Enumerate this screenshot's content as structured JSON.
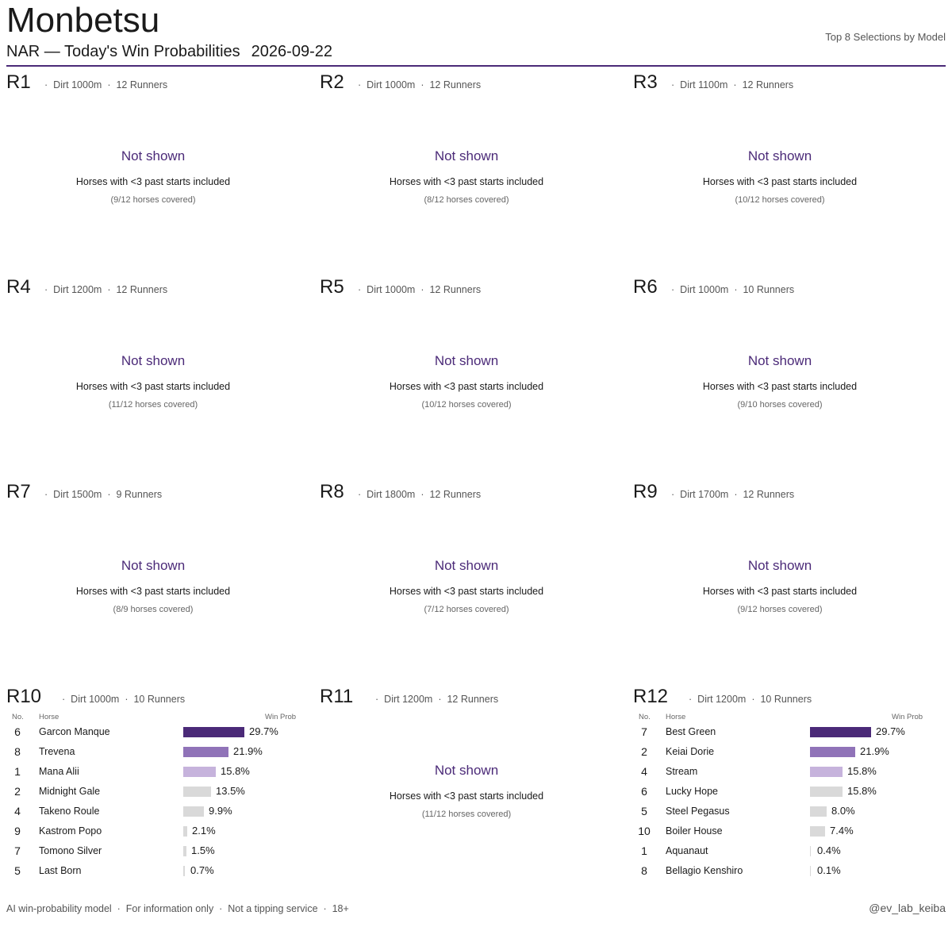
{
  "header": {
    "venue": "Monbetsu",
    "subtitle": "NAR — Today's Win Probabilities",
    "date": "2026-09-22",
    "right_label": "Top 8 Selections by Model"
  },
  "labels": {
    "not_shown": "Not shown",
    "not_shown_note": "Horses with <3 past starts included",
    "col_no": "No.",
    "col_horse": "Horse",
    "col_prob": "Win Prob",
    "separator": "·"
  },
  "colors": {
    "accent": "#4b2a78",
    "mid": "#9073b8",
    "light": "#c6b3dc",
    "grey": "#d9d9d9"
  },
  "races": [
    {
      "id": "R1",
      "surface": "Dirt 1000m",
      "runners": "12 Runners",
      "coverage": "(9/12 horses covered)"
    },
    {
      "id": "R2",
      "surface": "Dirt 1000m",
      "runners": "12 Runners",
      "coverage": "(8/12 horses covered)"
    },
    {
      "id": "R3",
      "surface": "Dirt 1100m",
      "runners": "12 Runners",
      "coverage": "(10/12 horses covered)"
    },
    {
      "id": "R4",
      "surface": "Dirt 1200m",
      "runners": "12 Runners",
      "coverage": "(11/12 horses covered)"
    },
    {
      "id": "R5",
      "surface": "Dirt 1000m",
      "runners": "12 Runners",
      "coverage": "(10/12 horses covered)"
    },
    {
      "id": "R6",
      "surface": "Dirt 1000m",
      "runners": "10 Runners",
      "coverage": "(9/10 horses covered)"
    },
    {
      "id": "R7",
      "surface": "Dirt 1500m",
      "runners": "9 Runners",
      "coverage": "(8/9 horses covered)"
    },
    {
      "id": "R8",
      "surface": "Dirt 1800m",
      "runners": "12 Runners",
      "coverage": "(7/12 horses covered)"
    },
    {
      "id": "R9",
      "surface": "Dirt 1700m",
      "runners": "12 Runners",
      "coverage": "(9/12 horses covered)"
    },
    {
      "id": "R10",
      "surface": "Dirt 1000m",
      "runners": "10 Runners",
      "selections": [
        {
          "no": "6",
          "horse": "Garcon Manque",
          "prob": 29.7,
          "label": "29.7%",
          "tier": "accent"
        },
        {
          "no": "8",
          "horse": "Trevena",
          "prob": 21.9,
          "label": "21.9%",
          "tier": "mid"
        },
        {
          "no": "1",
          "horse": "Mana Alii",
          "prob": 15.8,
          "label": "15.8%",
          "tier": "light"
        },
        {
          "no": "2",
          "horse": "Midnight Gale",
          "prob": 13.5,
          "label": "13.5%",
          "tier": "grey"
        },
        {
          "no": "4",
          "horse": "Takeno Roule",
          "prob": 9.9,
          "label": "9.9%",
          "tier": "grey"
        },
        {
          "no": "9",
          "horse": "Kastrom Popo",
          "prob": 2.1,
          "label": "2.1%",
          "tier": "grey"
        },
        {
          "no": "7",
          "horse": "Tomono Silver",
          "prob": 1.5,
          "label": "1.5%",
          "tier": "grey"
        },
        {
          "no": "5",
          "horse": "Last Born",
          "prob": 0.7,
          "label": "0.7%",
          "tier": "grey"
        }
      ]
    },
    {
      "id": "R11",
      "surface": "Dirt 1200m",
      "runners": "12 Runners",
      "coverage": "(11/12 horses covered)"
    },
    {
      "id": "R12",
      "surface": "Dirt 1200m",
      "runners": "10 Runners",
      "selections": [
        {
          "no": "7",
          "horse": "Best Green",
          "prob": 29.7,
          "label": "29.7%",
          "tier": "accent"
        },
        {
          "no": "2",
          "horse": "Keiai Dorie",
          "prob": 21.9,
          "label": "21.9%",
          "tier": "mid"
        },
        {
          "no": "4",
          "horse": "Stream",
          "prob": 15.8,
          "label": "15.8%",
          "tier": "light"
        },
        {
          "no": "6",
          "horse": "Lucky Hope",
          "prob": 15.8,
          "label": "15.8%",
          "tier": "grey"
        },
        {
          "no": "5",
          "horse": "Steel Pegasus",
          "prob": 8.0,
          "label": "8.0%",
          "tier": "grey"
        },
        {
          "no": "10",
          "horse": "Boiler House",
          "prob": 7.4,
          "label": "7.4%",
          "tier": "grey"
        },
        {
          "no": "1",
          "horse": "Aquanaut",
          "prob": 0.4,
          "label": "0.4%",
          "tier": "grey"
        },
        {
          "no": "8",
          "horse": "Bellagio Kenshiro",
          "prob": 0.1,
          "label": "0.1%",
          "tier": "grey"
        }
      ]
    }
  ],
  "footer": {
    "left": "AI win-probability model  ·  For information only  ·  Not a tipping service  ·  18+",
    "handle": "@ev_lab_keiba"
  }
}
